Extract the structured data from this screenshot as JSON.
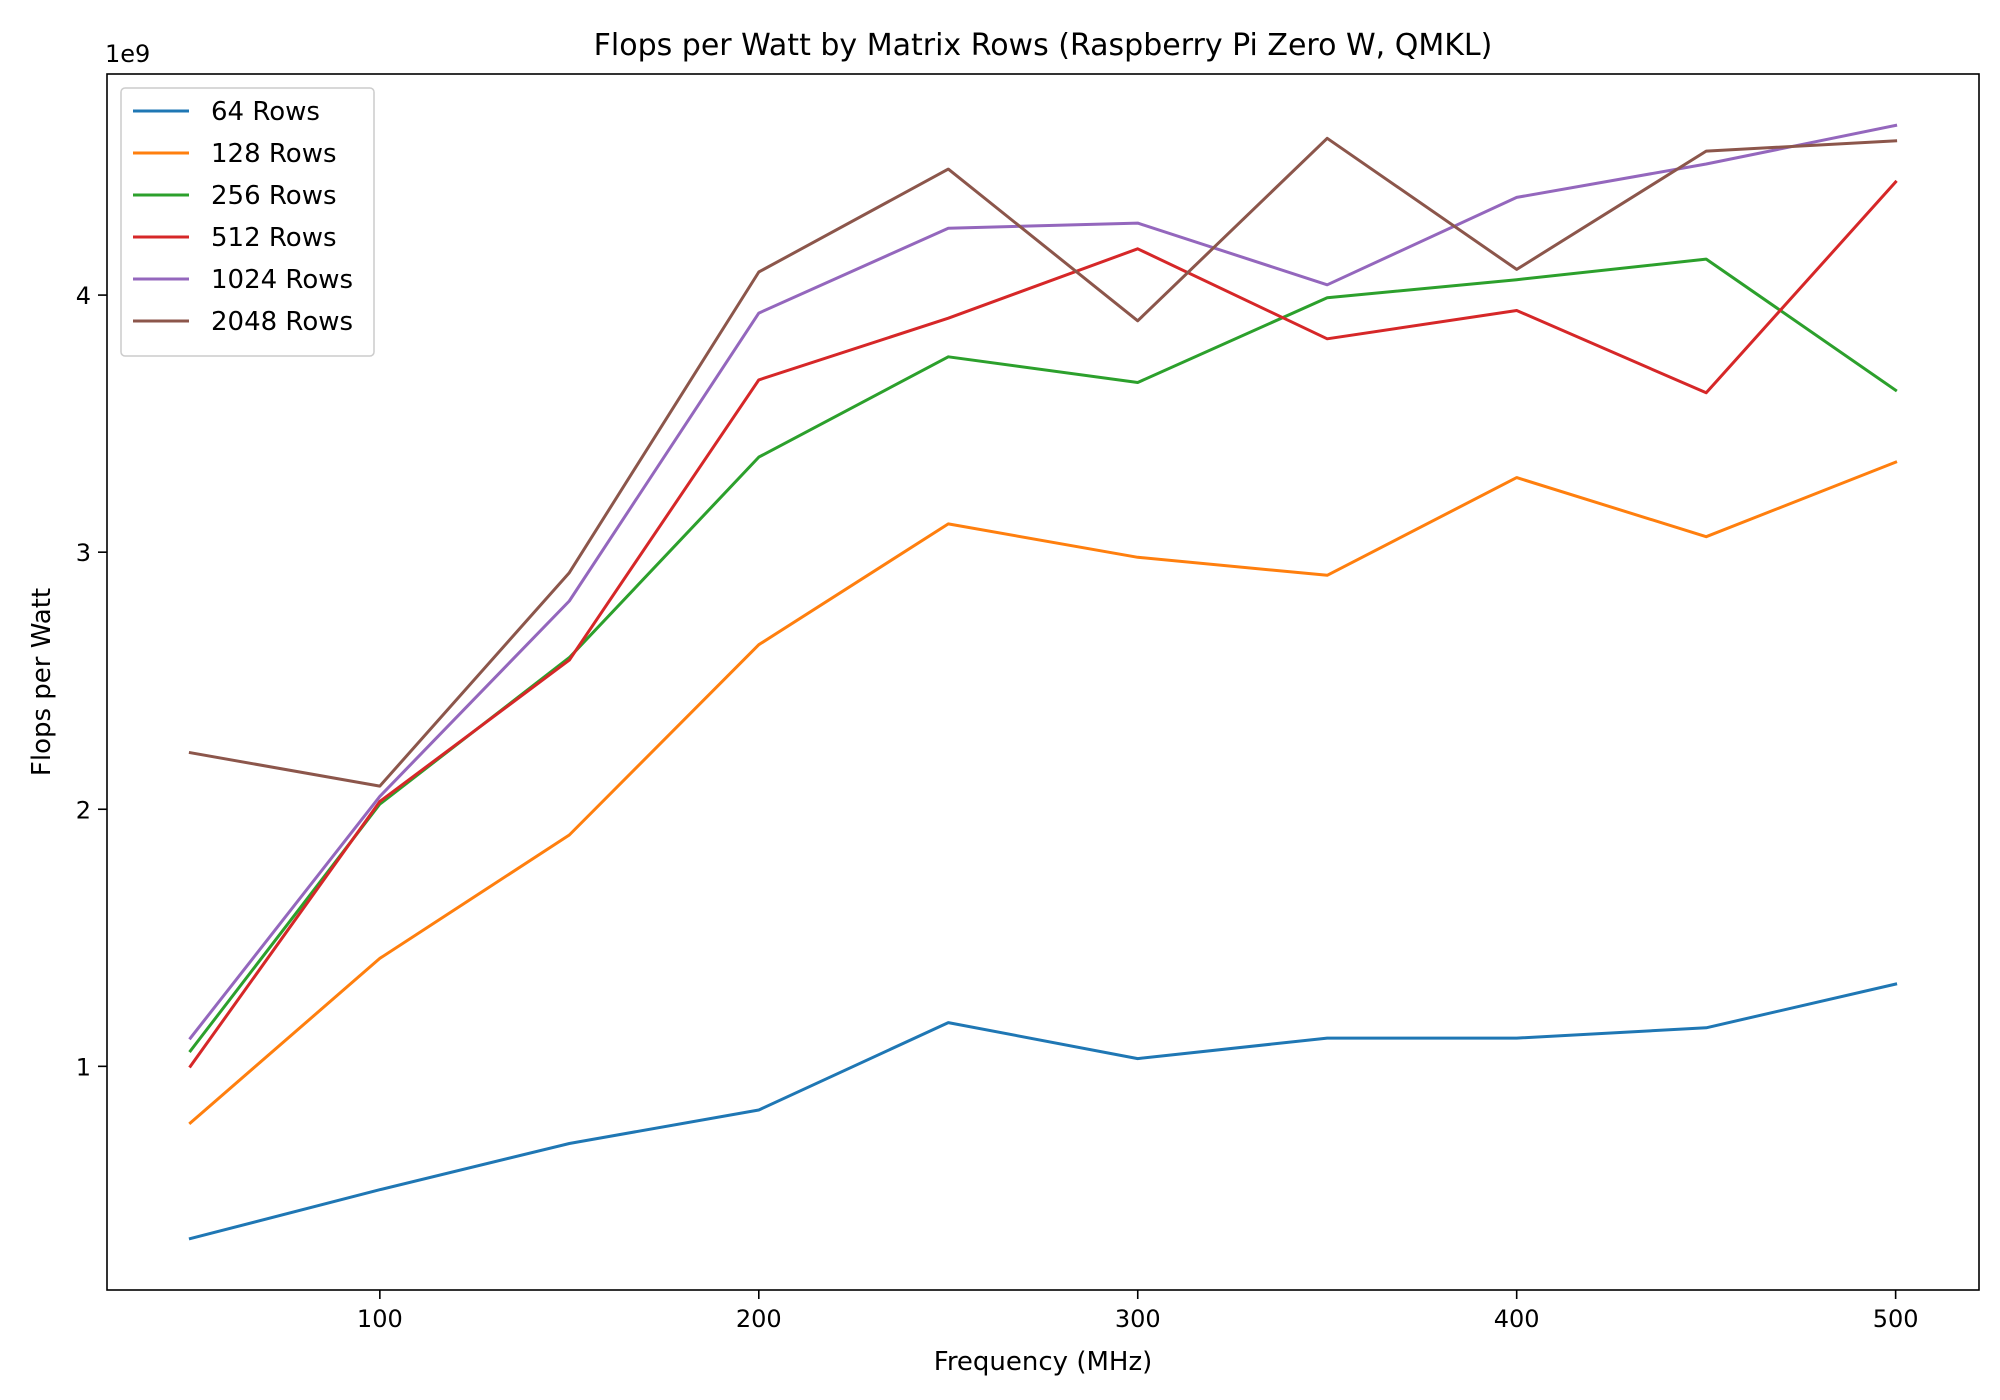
{
  "chart_data": {
    "type": "line",
    "title": "Flops per Watt by Matrix Rows (Raspberry Pi Zero W, QMKL)",
    "xlabel": "Frequency (MHz)",
    "ylabel": "Flops per Watt",
    "y_offset_label": "1e9",
    "x": [
      50,
      100,
      150,
      200,
      250,
      300,
      350,
      400,
      450,
      500
    ],
    "xlim": [
      28,
      522
    ],
    "ylim": [
      0.13,
      4.86
    ],
    "x_ticks": [
      "100",
      "200",
      "300",
      "400",
      "500"
    ],
    "y_ticks": [
      "1",
      "2",
      "3",
      "4"
    ],
    "grid": false,
    "legend_position": "upper-left",
    "series": [
      {
        "name": "64 Rows",
        "color": "#1f77b4",
        "values": [
          0.33,
          0.52,
          0.7,
          0.83,
          1.17,
          1.03,
          1.11,
          1.11,
          1.15,
          1.32
        ]
      },
      {
        "name": "128 Rows",
        "color": "#ff7f0e",
        "values": [
          0.78,
          1.42,
          1.9,
          2.64,
          3.11,
          2.98,
          2.91,
          3.29,
          3.06,
          3.35
        ]
      },
      {
        "name": "256 Rows",
        "color": "#2ca02c",
        "values": [
          1.06,
          2.02,
          2.59,
          3.37,
          3.76,
          3.66,
          3.99,
          4.06,
          4.14,
          3.63
        ]
      },
      {
        "name": "512 Rows",
        "color": "#d62728",
        "values": [
          1.0,
          2.03,
          2.58,
          3.67,
          3.91,
          4.18,
          3.83,
          3.94,
          3.62,
          4.44
        ]
      },
      {
        "name": "1024 Rows",
        "color": "#9467bd",
        "values": [
          1.11,
          2.05,
          2.81,
          3.93,
          4.26,
          4.28,
          4.04,
          4.38,
          4.51,
          4.66
        ]
      },
      {
        "name": "2048 Rows",
        "color": "#8c564b",
        "values": [
          2.22,
          2.09,
          2.92,
          4.09,
          4.49,
          3.9,
          4.61,
          4.1,
          4.56,
          4.6
        ]
      }
    ]
  }
}
